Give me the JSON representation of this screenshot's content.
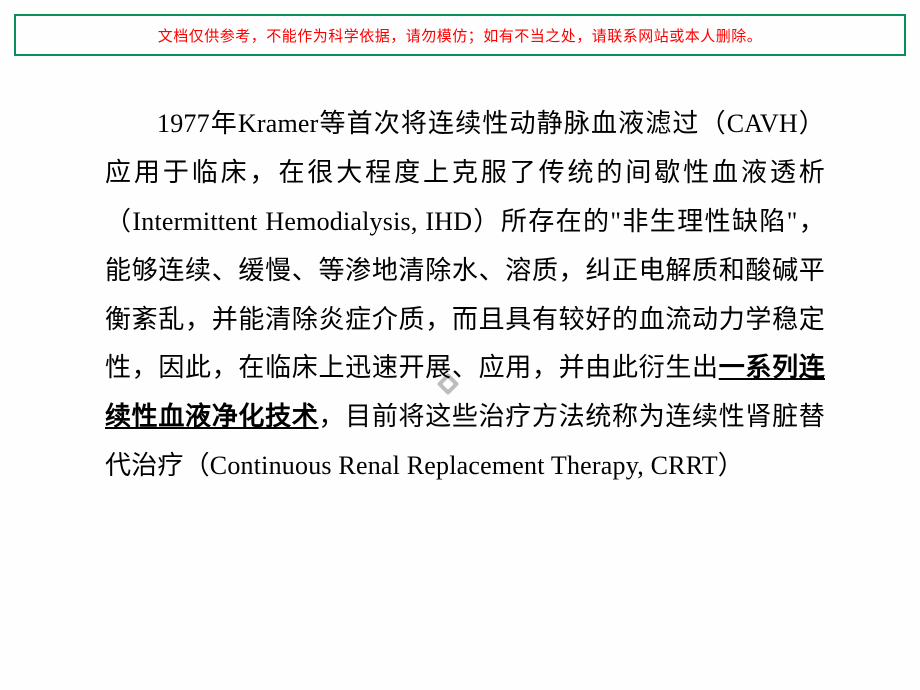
{
  "warning": {
    "text": "文档仅供参考，不能作为科学依据，请勿模仿；如有不当之处，请联系网站或本人删除。",
    "border_color": "#0a8f5b",
    "text_color": "#ff0000"
  },
  "body": {
    "pre_text": "1977年Kramer等首次将连续性动静脉血液滤过（CAVH）应用于临床，在很大程度上克服了传统的间歇性血液透析（Intermittent Hemodialysis, IHD）所存在的\"非生理性缺陷\"， 能够连续、缓慢、等渗地清除水、溶质，纠正电解质和酸碱平衡紊乱，并能清除炎症介质，而且具有较好的血流动力学稳定性，因此，在临床上迅速开展、应用，并由此衍生出",
    "emph_text": "一系列连续性血液净化技术",
    "post_text": "，目前将这些治疗方法统称为连续性肾脏替代治疗（Continuous Renal Replacement Therapy, CRRT）",
    "font_size": 26,
    "line_height": 1.88,
    "text_color": "#000000"
  },
  "decoration": {
    "icon_name": "diamond-bullet-icon",
    "color": "#bdbdbd"
  }
}
